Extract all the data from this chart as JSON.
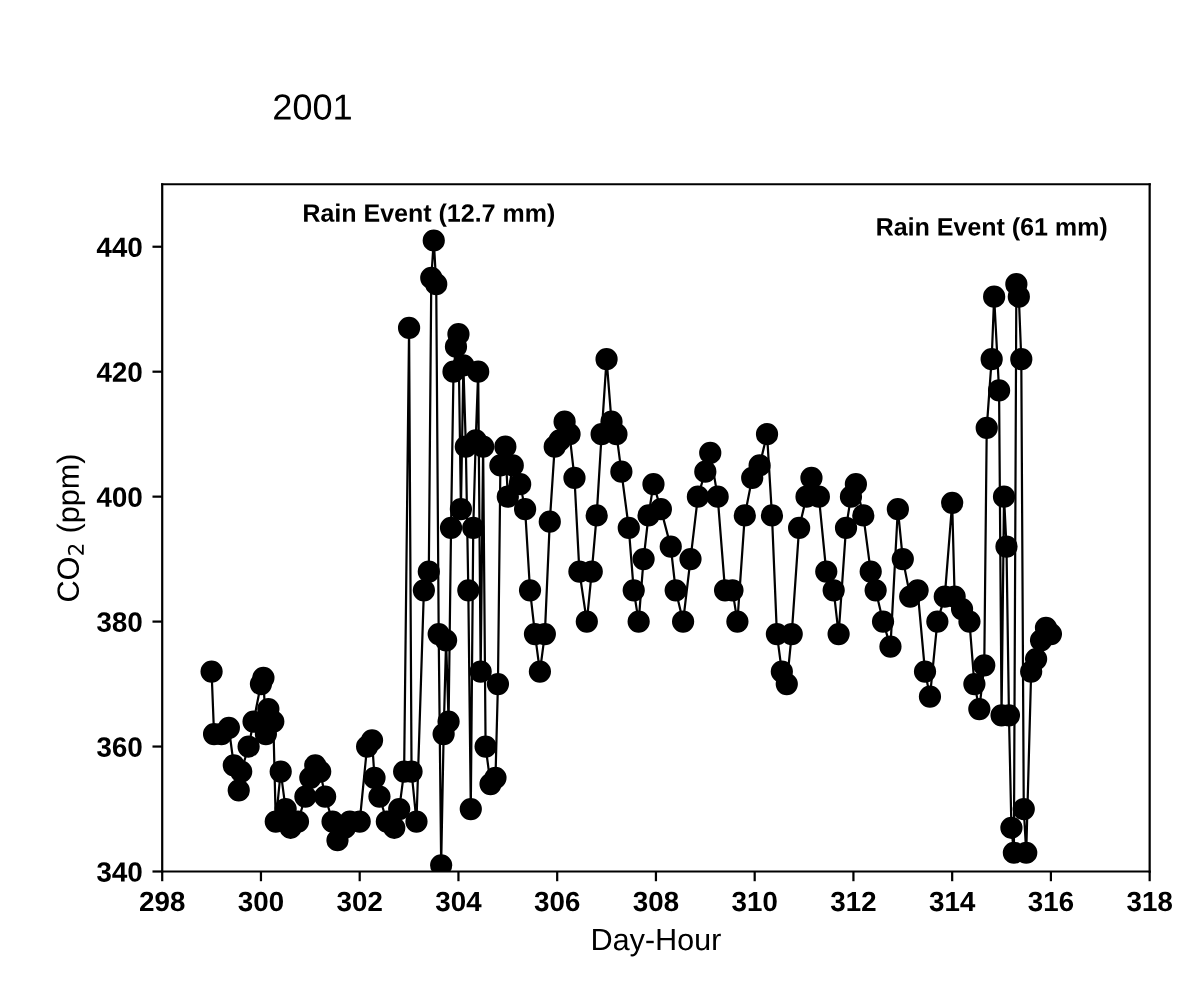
{
  "chart_data": {
    "type": "line",
    "title": "2001",
    "xlabel": "Day-Hour",
    "ylabel": "CO$_{2}$ (ppm)",
    "xlim": [
      298,
      318
    ],
    "xticks": [
      298,
      300,
      302,
      304,
      306,
      308,
      310,
      312,
      314,
      316,
      318
    ],
    "ylim": [
      340,
      450
    ],
    "yticks": [
      340,
      360,
      380,
      400,
      420,
      440
    ],
    "marker": "circle",
    "line_style": "solid",
    "grid": false,
    "legend": false,
    "annotations": [
      "Rain Event (12.7 mm)",
      "Rain Event (61 mm)"
    ],
    "series": [
      {
        "color": "#000000",
        "x": [
          299.0,
          299.05,
          299.2,
          299.35,
          299.45,
          299.55,
          299.6,
          299.75,
          299.85,
          300.0,
          300.05,
          300.1,
          300.15,
          300.25,
          300.3,
          300.4,
          300.5,
          300.6,
          300.75,
          300.9,
          301.0,
          301.1,
          301.2,
          301.3,
          301.45,
          301.55,
          301.7,
          301.8,
          302.0,
          302.15,
          302.25,
          302.3,
          302.4,
          302.55,
          302.7,
          302.8,
          302.9,
          303.0,
          303.05,
          303.15,
          303.3,
          303.4,
          303.45,
          303.5,
          303.55,
          303.6,
          303.65,
          303.7,
          303.75,
          303.8,
          303.85,
          303.9,
          303.95,
          304.0,
          304.05,
          304.1,
          304.15,
          304.2,
          304.25,
          304.3,
          304.35,
          304.4,
          304.45,
          304.5,
          304.55,
          304.65,
          304.75,
          304.8,
          304.85,
          304.95,
          305.0,
          305.1,
          305.25,
          305.35,
          305.45,
          305.55,
          305.65,
          305.75,
          305.85,
          305.95,
          306.05,
          306.15,
          306.25,
          306.35,
          306.45,
          306.6,
          306.7,
          306.8,
          306.9,
          307.0,
          307.1,
          307.2,
          307.3,
          307.45,
          307.55,
          307.65,
          307.75,
          307.85,
          307.95,
          308.1,
          308.3,
          308.4,
          308.55,
          308.7,
          308.85,
          309.0,
          309.1,
          309.25,
          309.4,
          309.55,
          309.65,
          309.8,
          309.95,
          310.1,
          310.25,
          310.35,
          310.45,
          310.55,
          310.65,
          310.75,
          310.9,
          311.05,
          311.15,
          311.3,
          311.45,
          311.6,
          311.7,
          311.85,
          311.95,
          312.05,
          312.2,
          312.35,
          312.45,
          312.6,
          312.75,
          312.9,
          313.0,
          313.15,
          313.3,
          313.45,
          313.55,
          313.7,
          313.85,
          314.0,
          314.05,
          314.2,
          314.35,
          314.45,
          314.55,
          314.65,
          314.7,
          314.8,
          314.85,
          314.95,
          315.0,
          315.05,
          315.1,
          315.15,
          315.2,
          315.25,
          315.3,
          315.35,
          315.4,
          315.45,
          315.5,
          315.6,
          315.7,
          315.8,
          315.9,
          316.0
        ],
        "values": [
          372,
          362,
          362,
          363,
          357,
          353,
          356,
          360,
          364,
          370,
          371,
          362,
          366,
          364,
          348,
          356,
          350,
          347,
          348,
          352,
          355,
          357,
          356,
          352,
          348,
          345,
          347,
          348,
          348,
          360,
          361,
          355,
          352,
          348,
          347,
          350,
          356,
          427,
          356,
          348,
          385,
          388,
          435,
          441,
          434,
          378,
          341,
          362,
          377,
          364,
          395,
          420,
          424,
          426,
          398,
          421,
          408,
          385,
          350,
          395,
          409,
          420,
          372,
          408,
          360,
          354,
          355,
          370,
          405,
          408,
          400,
          405,
          402,
          398,
          385,
          378,
          372,
          378,
          396,
          408,
          409,
          412,
          410,
          403,
          388,
          380,
          388,
          397,
          410,
          422,
          412,
          410,
          404,
          395,
          385,
          380,
          390,
          397,
          402,
          398,
          392,
          385,
          380,
          390,
          400,
          404,
          407,
          400,
          385,
          385,
          380,
          397,
          403,
          405,
          410,
          397,
          378,
          372,
          370,
          378,
          395,
          400,
          403,
          400,
          388,
          385,
          378,
          395,
          400,
          402,
          397,
          388,
          385,
          380,
          376,
          398,
          390,
          384,
          385,
          372,
          368,
          380,
          384,
          399,
          384,
          382,
          380,
          370,
          366,
          373,
          411,
          422,
          432,
          417,
          365,
          400,
          392,
          365,
          347,
          343,
          434,
          432,
          422,
          350,
          343,
          372,
          374,
          377,
          379,
          378
        ]
      }
    ]
  }
}
